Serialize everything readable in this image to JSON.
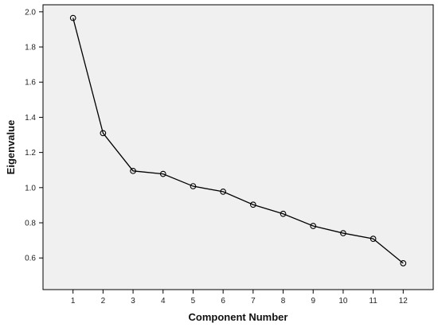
{
  "chart_data": {
    "type": "line",
    "title": "",
    "xlabel": "Component Number",
    "ylabel": "Eigenvalue",
    "x": [
      1,
      2,
      3,
      4,
      5,
      6,
      7,
      8,
      9,
      10,
      11,
      12
    ],
    "series": [
      {
        "values": [
          1.965,
          1.31,
          1.095,
          1.078,
          1.008,
          0.977,
          0.903,
          0.851,
          0.782,
          0.741,
          0.709,
          0.57
        ]
      }
    ],
    "x_ticks": [
      "1",
      "2",
      "3",
      "4",
      "5",
      "6",
      "7",
      "8",
      "9",
      "10",
      "11",
      "12"
    ],
    "y_ticks": [
      "0.6",
      "0.8",
      "1.0",
      "1.2",
      "1.4",
      "1.6",
      "1.8",
      "2.0"
    ],
    "xlim": [
      0,
      13
    ],
    "ylim": [
      0.42,
      2.04
    ],
    "grid": false,
    "legend": "none",
    "marker": "open-circle",
    "colors": {
      "plot_background": "#f0f0f0",
      "line": "#000000",
      "page_background": "#ffffff"
    }
  }
}
